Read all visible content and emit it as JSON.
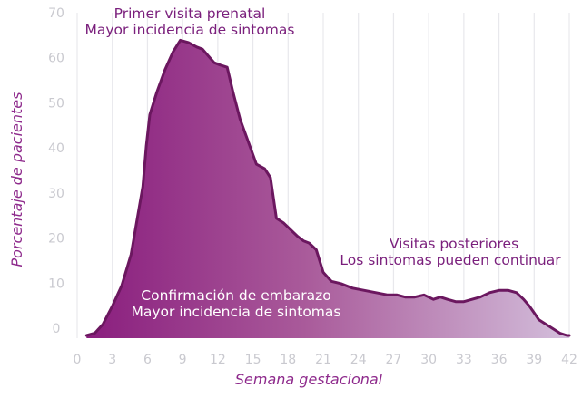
{
  "chart_data": {
    "type": "area",
    "xlabel": "Semana gestacional",
    "ylabel": "Porcentaje de pacientes",
    "xlim": [
      0,
      42
    ],
    "ylim": [
      0,
      70
    ],
    "x_ticks": [
      "0",
      "3",
      "6",
      "9",
      "12",
      "15",
      "18",
      "21",
      "24",
      "27",
      "30",
      "33",
      "36",
      "39",
      "42"
    ],
    "y_ticks": [
      "0",
      "10",
      "20",
      "30",
      "40",
      "50",
      "60",
      "70"
    ],
    "grid": "vertical",
    "x": [
      0.8,
      1.5,
      2.2,
      3.0,
      3.8,
      4.6,
      5.2,
      5.6,
      5.9,
      6.2,
      6.8,
      7.5,
      8.2,
      8.8,
      9.5,
      10.2,
      10.7,
      11.2,
      11.7,
      12.2,
      12.8,
      13.3,
      13.9,
      14.6,
      15.3,
      16.0,
      16.5,
      17.0,
      17.6,
      18.2,
      18.8,
      19.3,
      19.8,
      20.4,
      21.0,
      21.7,
      22.5,
      23.5,
      24.5,
      25.5,
      26.5,
      27.3,
      28.0,
      28.8,
      29.6,
      30.4,
      31.0,
      31.6,
      32.3,
      33.0,
      33.7,
      34.4,
      35.2,
      36.0,
      36.8,
      37.5,
      38.1,
      38.6,
      39.0,
      39.4,
      40.0,
      40.6,
      41.2,
      41.8,
      42.0
    ],
    "y": [
      0,
      0.5,
      2.5,
      6.5,
      11,
      18,
      27,
      33,
      42,
      49,
      54,
      59,
      63,
      65.5,
      65,
      64,
      63.5,
      62,
      60.5,
      60,
      59.5,
      54,
      48,
      43,
      38,
      37,
      35,
      26,
      25,
      23.5,
      22,
      21,
      20.5,
      19,
      14,
      12,
      11.5,
      10.5,
      10,
      9.5,
      9,
      9,
      8.5,
      8.5,
      9,
      8,
      8.5,
      8,
      7.5,
      7.5,
      8,
      8.5,
      9.5,
      10,
      10,
      9.5,
      8,
      6.5,
      5,
      3.5,
      2.5,
      1.5,
      0.5,
      0,
      0
    ],
    "annotations": [
      {
        "line1": "Primer visita prenatal",
        "line2": "Mayor incidencia de sintomas"
      },
      {
        "line1": "Confirmación de embarazo",
        "line2": "Mayor incidencia de sintomas"
      },
      {
        "line1": "Visitas posteriores",
        "line2": "Los sintomas pueden continuar"
      }
    ],
    "colors": {
      "fill_dark": "#8a1e7e",
      "fill_light": "#d3bedb",
      "line": "#6b175f",
      "grid": "#e8e8ec",
      "tick": "#c9c9cf",
      "axis_title": "#8e2a8c"
    }
  }
}
